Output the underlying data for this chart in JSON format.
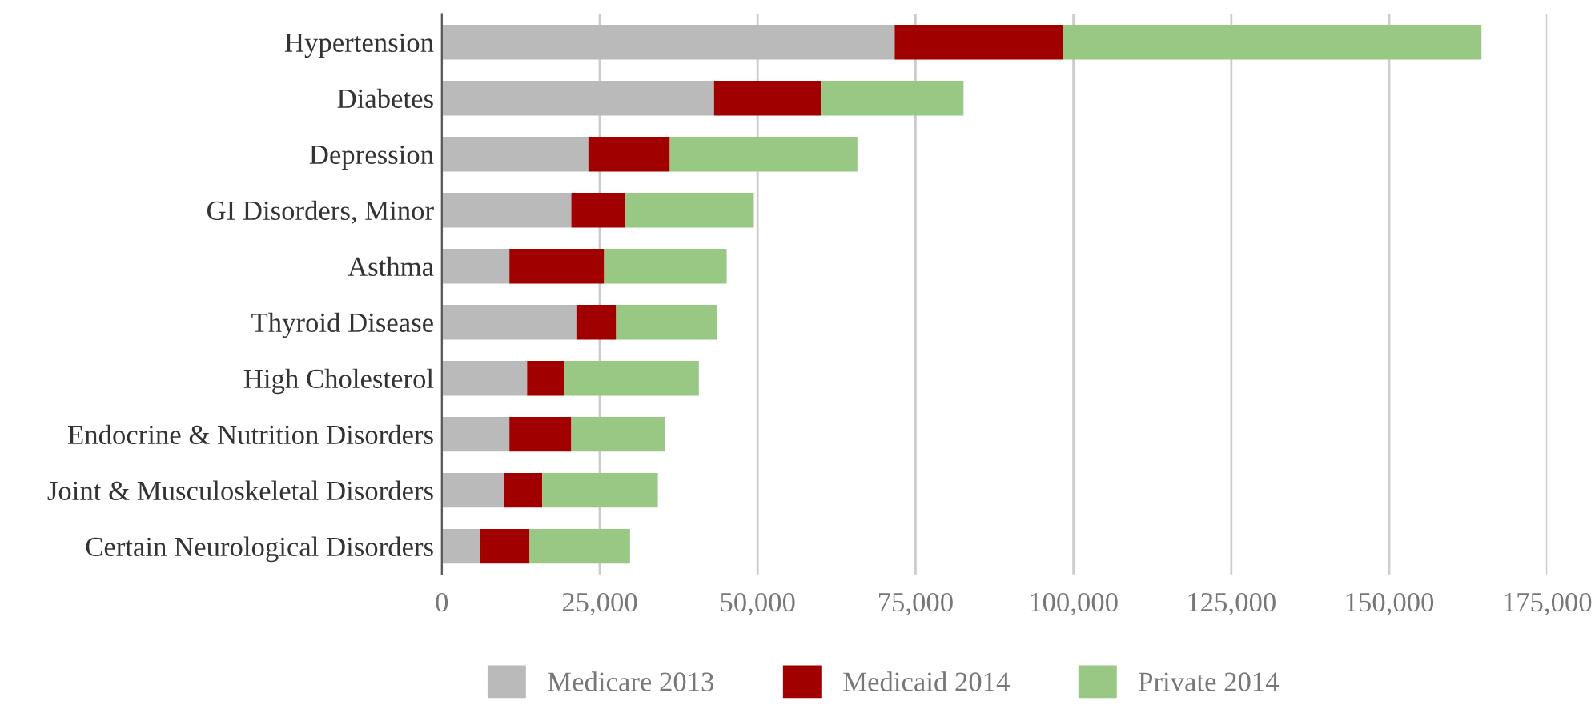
{
  "chart_data": {
    "type": "bar",
    "orientation": "horizontal",
    "stacked": true,
    "categories": [
      "Hypertension",
      "Diabetes",
      "Depression",
      "GI Disorders, Minor",
      "Asthma",
      "Thyroid Disease",
      "High Cholesterol",
      "Endocrine & Nutrition Disorders",
      "Joint & Musculoskeletal Disorders",
      "Certain Neurological Disorders"
    ],
    "series": [
      {
        "name": "Medicare 2013",
        "color": "#bababa",
        "values": [
          71700,
          43100,
          23200,
          20500,
          10700,
          21300,
          13500,
          10700,
          9900,
          6000
        ]
      },
      {
        "name": "Medicaid 2014",
        "color": "#a00000",
        "values": [
          26700,
          16900,
          12900,
          8600,
          15000,
          6300,
          5800,
          9800,
          6000,
          7900
        ]
      },
      {
        "name": "Private 2014",
        "color": "#98c884",
        "values": [
          66200,
          22600,
          29700,
          20300,
          19400,
          16000,
          21400,
          14800,
          18300,
          15900
        ]
      }
    ],
    "xlim": [
      0,
      175000
    ],
    "xticks": [
      {
        "value": 0,
        "label": "0"
      },
      {
        "value": 25000,
        "label": "25,000"
      },
      {
        "value": 50000,
        "label": "50,000"
      },
      {
        "value": 75000,
        "label": "75,000"
      },
      {
        "value": 100000,
        "label": "100,000"
      },
      {
        "value": 125000,
        "label": "125,000"
      },
      {
        "value": 150000,
        "label": "150,000"
      },
      {
        "value": 175000,
        "label": "175,000"
      }
    ],
    "grid": "x",
    "legend": "bottom"
  }
}
